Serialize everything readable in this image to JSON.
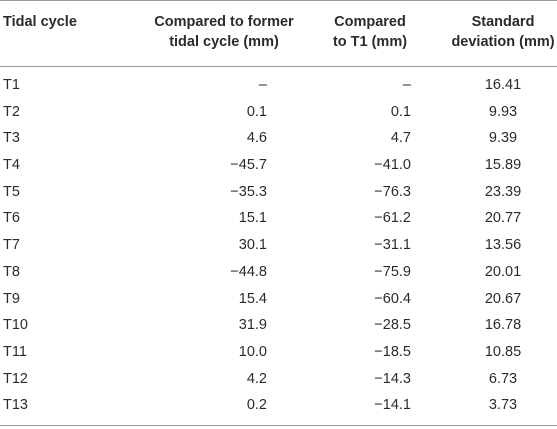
{
  "table": {
    "headers": {
      "col0": "Tidal cycle",
      "col1_line1": "Compared to former",
      "col1_line2": "tidal cycle (mm)",
      "col2_line1": "Compared",
      "col2_line2": "to T1 (mm)",
      "col3_line1": "Standard",
      "col3_line2": "deviation (mm)"
    },
    "rows": [
      {
        "cycle": "T1",
        "former": "–",
        "t1": "–",
        "sd": "16.41"
      },
      {
        "cycle": "T2",
        "former": "0.1",
        "t1": "0.1",
        "sd": "9.93"
      },
      {
        "cycle": "T3",
        "former": "4.6",
        "t1": "4.7",
        "sd": "9.39"
      },
      {
        "cycle": "T4",
        "former": "−45.7",
        "t1": "−41.0",
        "sd": "15.89"
      },
      {
        "cycle": "T5",
        "former": "−35.3",
        "t1": "−76.3",
        "sd": "23.39"
      },
      {
        "cycle": "T6",
        "former": "15.1",
        "t1": "−61.2",
        "sd": "20.77"
      },
      {
        "cycle": "T7",
        "former": "30.1",
        "t1": "−31.1",
        "sd": "13.56"
      },
      {
        "cycle": "T8",
        "former": "−44.8",
        "t1": "−75.9",
        "sd": "20.01"
      },
      {
        "cycle": "T9",
        "former": "15.4",
        "t1": "−60.4",
        "sd": "20.67"
      },
      {
        "cycle": "T10",
        "former": "31.9",
        "t1": "−28.5",
        "sd": "16.78"
      },
      {
        "cycle": "T11",
        "former": "10.0",
        "t1": "−18.5",
        "sd": "10.85"
      },
      {
        "cycle": "T12",
        "former": "4.2",
        "t1": "−14.3",
        "sd": "6.73"
      },
      {
        "cycle": "T13",
        "former": "0.2",
        "t1": "−14.1",
        "sd": "3.73"
      }
    ]
  }
}
